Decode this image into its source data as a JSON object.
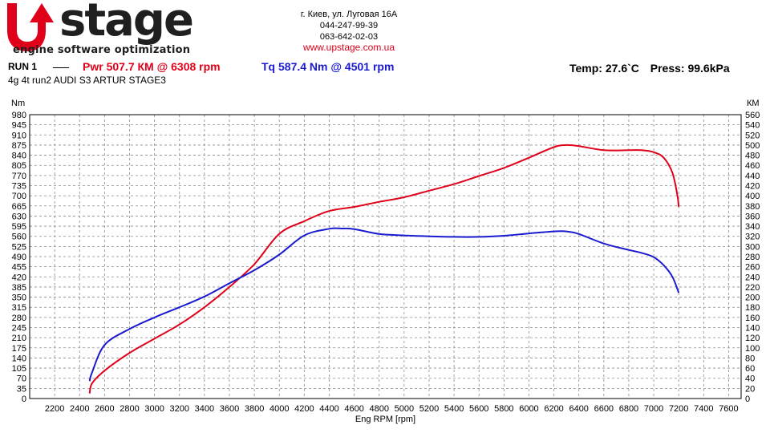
{
  "header": {
    "logo_text": "stage",
    "logo_tagline": "engine software optimization",
    "address": "г. Киев, ул. Луговая 16А",
    "phone1": "044-247-99-39",
    "phone2": "063-642-02-03",
    "website": "www.upstage.com.ua"
  },
  "run": {
    "label": "RUN 1",
    "power": "Pwr  507.7 КМ @ 6308 rpm",
    "torque": "Tq 587.4 Nm @ 4501 rpm",
    "description": "4g 4t run2 AUDI S3 ARTUR STAGE3",
    "temp": "Temp: 27.6`C",
    "press": "Press: 99.6kPa"
  },
  "colors": {
    "power": "#e0001a",
    "torque": "#1a1ad0",
    "brand_red": "#e0001a",
    "logo_dark": "#1f1f1f"
  },
  "chart_data": {
    "type": "line",
    "xlabel": "Eng RPM [rpm]",
    "ylabel_left": "Nm",
    "ylabel_right": "КМ",
    "xlim": [
      2000,
      7700
    ],
    "ylim_left": [
      0,
      980
    ],
    "ylim_right": [
      0,
      560
    ],
    "x_ticks": [
      2200,
      2400,
      2600,
      2800,
      3000,
      3200,
      3400,
      3600,
      3800,
      4000,
      4200,
      4400,
      4600,
      4800,
      5000,
      5200,
      5400,
      5600,
      5800,
      6000,
      6200,
      6400,
      6600,
      6800,
      7000,
      7200,
      7400,
      7600
    ],
    "y_ticks_left": [
      0,
      35,
      70,
      105,
      140,
      175,
      210,
      245,
      280,
      315,
      350,
      385,
      420,
      455,
      490,
      525,
      560,
      595,
      630,
      665,
      700,
      735,
      770,
      805,
      840,
      875,
      910,
      945,
      980
    ],
    "y_ticks_right": [
      0,
      20,
      40,
      60,
      80,
      100,
      120,
      140,
      160,
      180,
      200,
      220,
      240,
      260,
      280,
      300,
      320,
      340,
      360,
      380,
      400,
      420,
      440,
      460,
      480,
      500,
      520,
      540,
      560
    ],
    "grid": true,
    "series": [
      {
        "axis": "right",
        "x": [
          2480,
          2500,
          2600,
          2800,
          3000,
          3200,
          3400,
          3600,
          3800,
          4000,
          4200,
          4400,
          4600,
          4800,
          5000,
          5200,
          5400,
          5600,
          5800,
          6000,
          6200,
          6300,
          6400,
          6600,
          6800,
          6900,
          7000,
          7080,
          7150,
          7190,
          7200
        ],
        "y": [
          10,
          30,
          55,
          90,
          118,
          146,
          180,
          220,
          265,
          325,
          350,
          370,
          378,
          388,
          397,
          410,
          423,
          439,
          455,
          475,
          496,
          500,
          498,
          490,
          490,
          490,
          486,
          475,
          445,
          400,
          378
        ]
      },
      {
        "axis": "left",
        "x": [
          2480,
          2500,
          2600,
          2800,
          3000,
          3200,
          3400,
          3600,
          3800,
          4000,
          4200,
          4400,
          4500,
          4600,
          4800,
          5000,
          5200,
          5400,
          5600,
          5800,
          6000,
          6200,
          6300,
          6400,
          6600,
          6800,
          6900,
          7000,
          7080,
          7150,
          7200
        ],
        "y": [
          60,
          90,
          185,
          240,
          280,
          315,
          352,
          398,
          443,
          497,
          563,
          586,
          587,
          585,
          568,
          563,
          560,
          558,
          558,
          562,
          570,
          577,
          577,
          568,
          535,
          513,
          503,
          488,
          460,
          420,
          365
        ]
      }
    ]
  }
}
